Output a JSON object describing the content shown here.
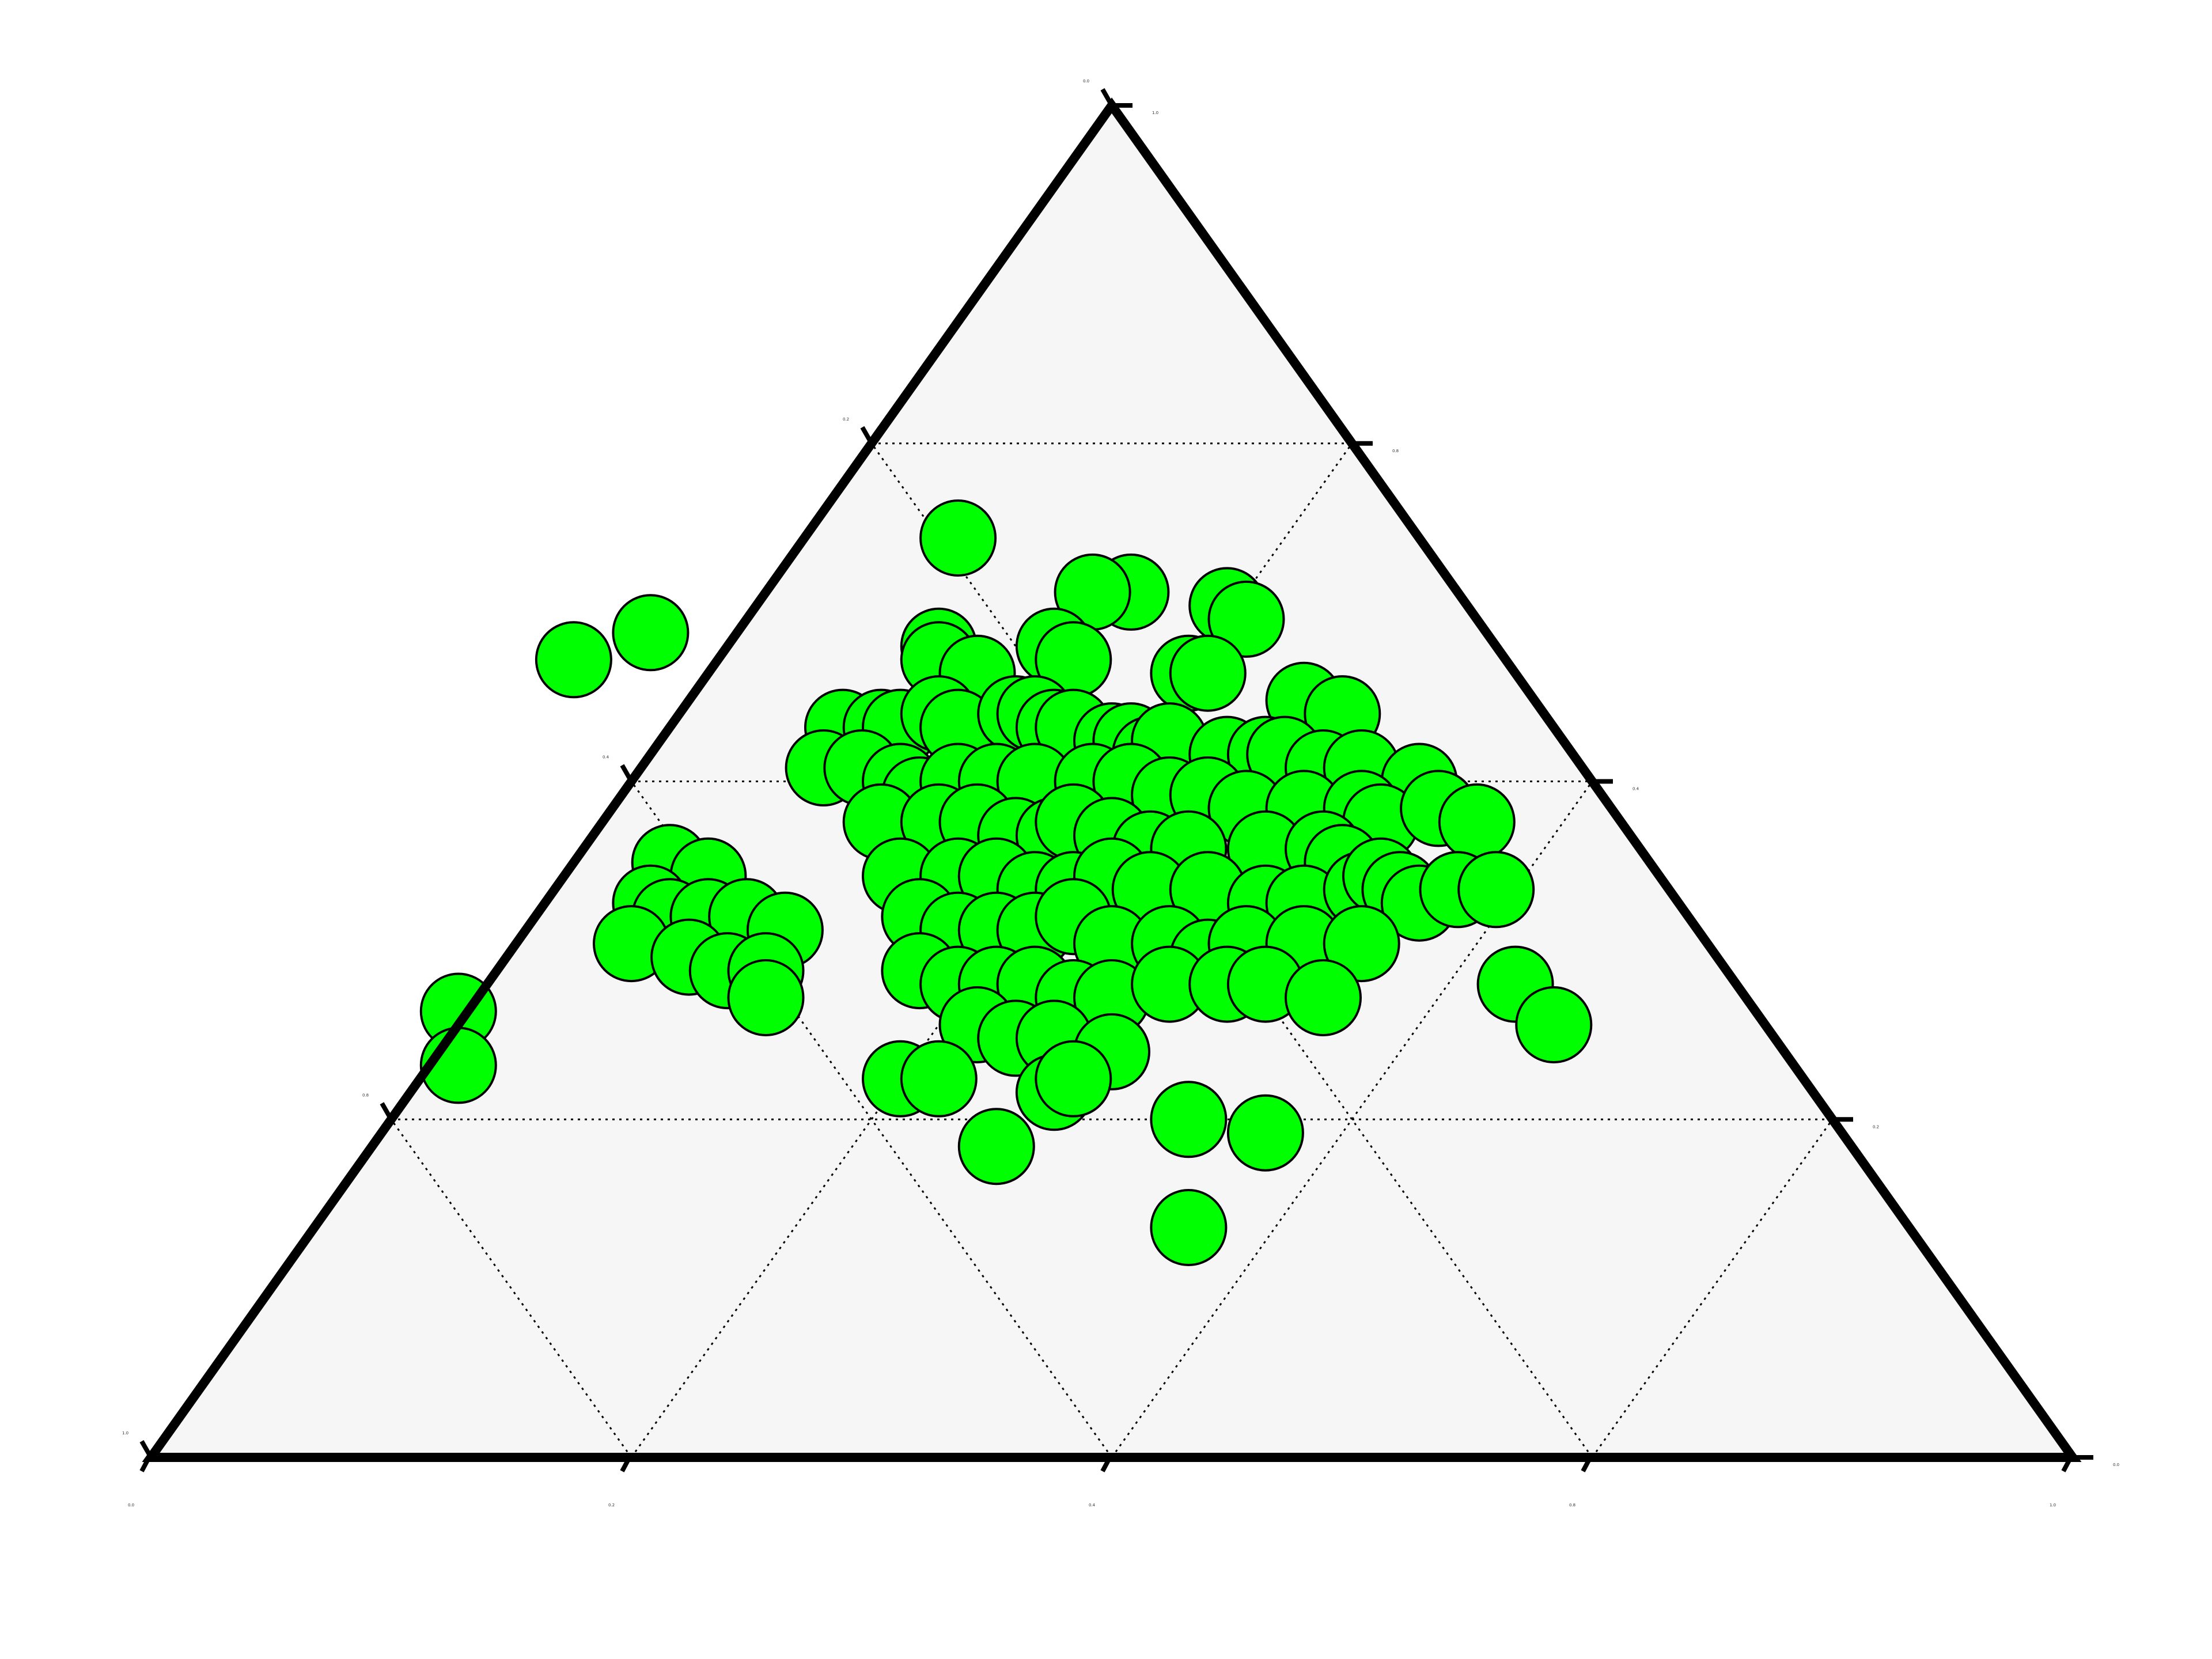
{
  "chart_data": {
    "type": "scatter",
    "subtype": "ternary",
    "title": "",
    "grid": true,
    "axis_ticks": [
      "0.0",
      "0.2",
      "0.4",
      "0.6",
      "0.8",
      "1.0"
    ],
    "colors": {
      "marker_fill": "#00ff00",
      "marker_edge": "#000000",
      "plot_bg": "#f6f6f6",
      "frame": "#000000"
    },
    "series": [
      {
        "points_ab": [
          [
            0.42,
            0.68
          ],
          [
            0.22,
            0.59
          ],
          [
            0.26,
            0.61
          ],
          [
            0.51,
            0.64
          ],
          [
            0.49,
            0.64
          ],
          [
            0.56,
            0.63
          ],
          [
            0.57,
            0.62
          ],
          [
            0.47,
            0.6
          ],
          [
            0.41,
            0.6
          ],
          [
            0.41,
            0.59
          ],
          [
            0.43,
            0.58
          ],
          [
            0.48,
            0.59
          ],
          [
            0.54,
            0.58
          ],
          [
            0.55,
            0.58
          ],
          [
            0.6,
            0.56
          ],
          [
            0.62,
            0.55
          ],
          [
            0.36,
            0.54
          ],
          [
            0.38,
            0.54
          ],
          [
            0.39,
            0.54
          ],
          [
            0.41,
            0.55
          ],
          [
            0.42,
            0.54
          ],
          [
            0.45,
            0.55
          ],
          [
            0.46,
            0.55
          ],
          [
            0.47,
            0.54
          ],
          [
            0.48,
            0.54
          ],
          [
            0.5,
            0.53
          ],
          [
            0.51,
            0.53
          ],
          [
            0.52,
            0.52
          ],
          [
            0.53,
            0.53
          ],
          [
            0.56,
            0.52
          ],
          [
            0.58,
            0.52
          ],
          [
            0.59,
            0.52
          ],
          [
            0.61,
            0.51
          ],
          [
            0.63,
            0.51
          ],
          [
            0.66,
            0.5
          ],
          [
            0.35,
            0.51
          ],
          [
            0.37,
            0.51
          ],
          [
            0.39,
            0.5
          ],
          [
            0.4,
            0.49
          ],
          [
            0.42,
            0.5
          ],
          [
            0.44,
            0.5
          ],
          [
            0.46,
            0.5
          ],
          [
            0.49,
            0.5
          ],
          [
            0.51,
            0.5
          ],
          [
            0.53,
            0.49
          ],
          [
            0.55,
            0.49
          ],
          [
            0.57,
            0.48
          ],
          [
            0.6,
            0.48
          ],
          [
            0.63,
            0.48
          ],
          [
            0.64,
            0.47
          ],
          [
            0.38,
            0.47
          ],
          [
            0.41,
            0.47
          ],
          [
            0.43,
            0.47
          ],
          [
            0.45,
            0.46
          ],
          [
            0.47,
            0.46
          ],
          [
            0.48,
            0.47
          ],
          [
            0.5,
            0.46
          ],
          [
            0.52,
            0.45
          ],
          [
            0.54,
            0.45
          ],
          [
            0.58,
            0.45
          ],
          [
            0.61,
            0.45
          ],
          [
            0.62,
            0.44
          ],
          [
            0.67,
            0.48
          ],
          [
            0.69,
            0.47
          ],
          [
            0.27,
            0.44
          ],
          [
            0.29,
            0.43
          ],
          [
            0.39,
            0.43
          ],
          [
            0.42,
            0.43
          ],
          [
            0.44,
            0.43
          ],
          [
            0.46,
            0.42
          ],
          [
            0.48,
            0.42
          ],
          [
            0.5,
            0.43
          ],
          [
            0.52,
            0.42
          ],
          [
            0.55,
            0.42
          ],
          [
            0.58,
            0.41
          ],
          [
            0.6,
            0.41
          ],
          [
            0.63,
            0.42
          ],
          [
            0.64,
            0.43
          ],
          [
            0.65,
            0.42
          ],
          [
            0.66,
            0.41
          ],
          [
            0.68,
            0.42
          ],
          [
            0.7,
            0.42
          ],
          [
            0.26,
            0.41
          ],
          [
            0.27,
            0.4
          ],
          [
            0.29,
            0.4
          ],
          [
            0.31,
            0.4
          ],
          [
            0.33,
            0.39
          ],
          [
            0.4,
            0.4
          ],
          [
            0.42,
            0.39
          ],
          [
            0.44,
            0.39
          ],
          [
            0.46,
            0.39
          ],
          [
            0.48,
            0.4
          ],
          [
            0.5,
            0.38
          ],
          [
            0.53,
            0.38
          ],
          [
            0.55,
            0.37
          ],
          [
            0.57,
            0.38
          ],
          [
            0.6,
            0.38
          ],
          [
            0.63,
            0.38
          ],
          [
            0.25,
            0.38
          ],
          [
            0.28,
            0.37
          ],
          [
            0.3,
            0.36
          ],
          [
            0.32,
            0.36
          ],
          [
            0.4,
            0.36
          ],
          [
            0.42,
            0.35
          ],
          [
            0.44,
            0.35
          ],
          [
            0.46,
            0.35
          ],
          [
            0.48,
            0.34
          ],
          [
            0.5,
            0.34
          ],
          [
            0.53,
            0.35
          ],
          [
            0.56,
            0.35
          ],
          [
            0.58,
            0.35
          ],
          [
            0.61,
            0.34
          ],
          [
            0.32,
            0.34
          ],
          [
            0.43,
            0.32
          ],
          [
            0.45,
            0.31
          ],
          [
            0.47,
            0.31
          ],
          [
            0.5,
            0.3
          ],
          [
            0.71,
            0.35
          ],
          [
            0.73,
            0.32
          ],
          [
            0.16,
            0.33
          ],
          [
            0.16,
            0.29
          ],
          [
            0.39,
            0.28
          ],
          [
            0.41,
            0.28
          ],
          [
            0.47,
            0.27
          ],
          [
            0.48,
            0.28
          ],
          [
            0.54,
            0.25
          ],
          [
            0.58,
            0.24
          ],
          [
            0.44,
            0.23
          ],
          [
            0.54,
            0.17
          ]
        ]
      }
    ]
  }
}
